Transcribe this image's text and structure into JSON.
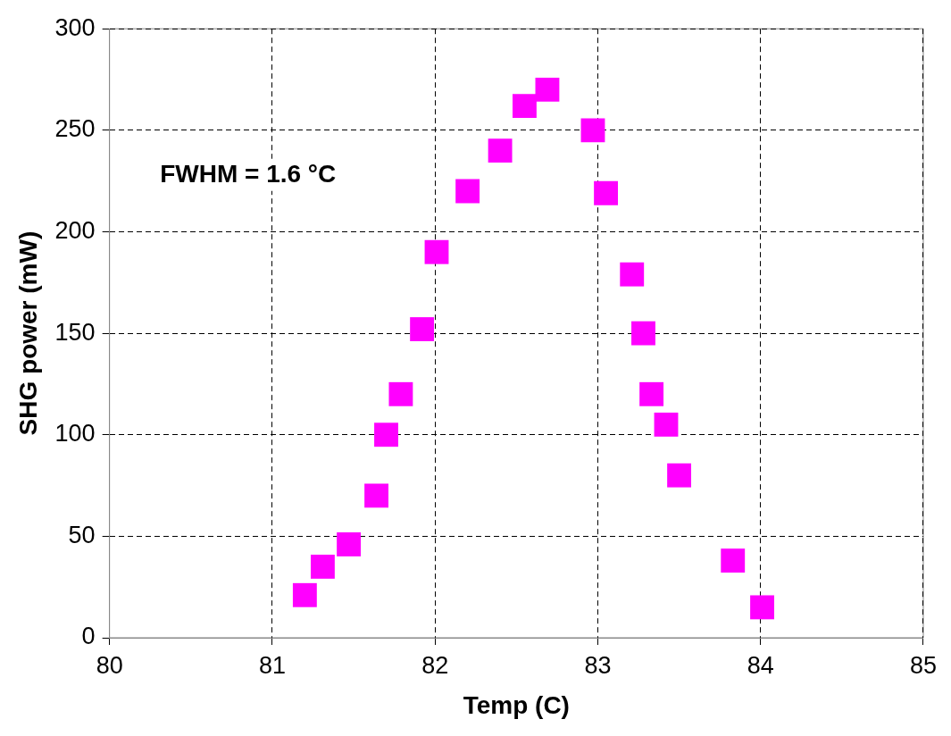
{
  "chart_data": {
    "type": "scatter",
    "xlabel": "Temp (C)",
    "ylabel": "SHG power (mW)",
    "annotations": [
      "FWHM = 1.6 °C"
    ],
    "series": [
      {
        "color": "#ff00ff",
        "x": [
          81.2,
          81.31,
          81.47,
          81.64,
          81.7,
          81.79,
          81.92,
          82.01,
          82.2,
          82.4,
          82.55,
          82.69,
          82.97,
          83.05,
          83.21,
          83.28,
          83.33,
          83.42,
          83.5,
          83.83,
          84.01
        ],
        "values": [
          21,
          35,
          46,
          70,
          100,
          120,
          152,
          190,
          220,
          240,
          262,
          270,
          250,
          219,
          179,
          150,
          120,
          105,
          80,
          38,
          15
        ]
      }
    ],
    "xlim": [
      80,
      85
    ],
    "xticks": [
      80,
      81,
      82,
      83,
      84,
      85
    ],
    "ylim": [
      0,
      300
    ],
    "yticks": [
      0,
      50,
      100,
      150,
      200,
      250,
      300
    ],
    "grid": true,
    "legend": false,
    "marker": "square"
  }
}
